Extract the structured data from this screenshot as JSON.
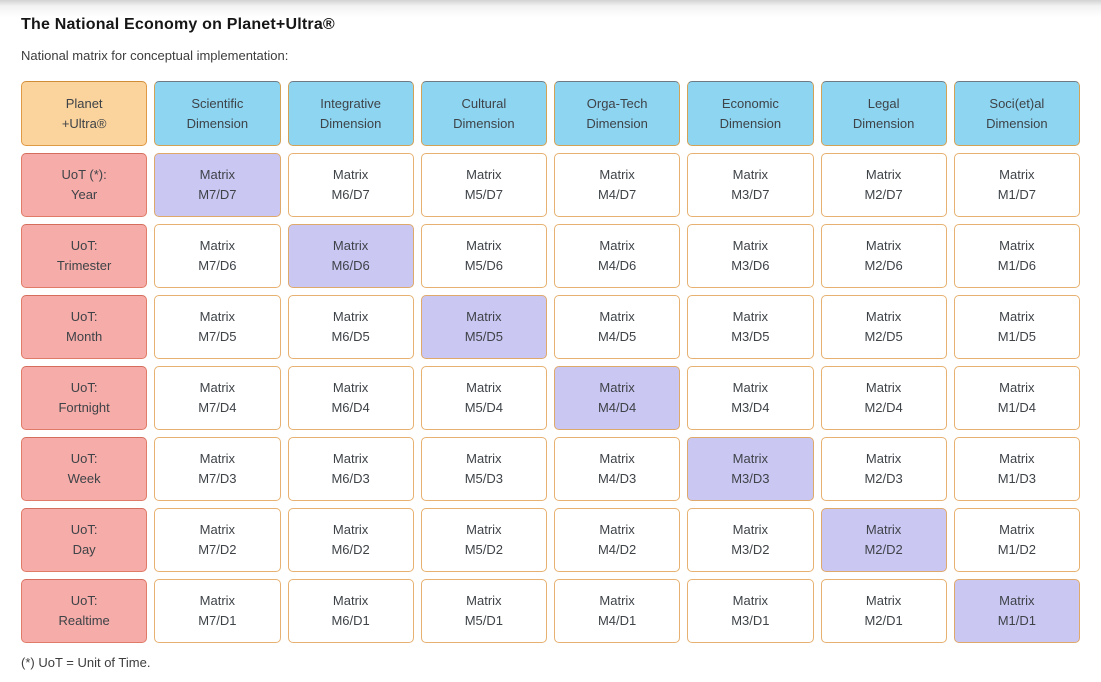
{
  "page": {
    "title": "The National Economy on Planet+Ultra®",
    "subtitle": "National matrix for conceptual implementation:",
    "footnote": "(*) UoT = Unit of Time."
  },
  "colors": {
    "corner_fill": "#fbd39c",
    "corner_border": "#e09a44",
    "dimension_fill": "#8ed5f2",
    "uot_fill": "#f6aca8",
    "uot_border": "#e07b68",
    "matrix_fill": "#ffffff",
    "matrix_border": "#e6b171",
    "diagonal_fill": "#cbc7f3"
  },
  "grid": {
    "corner": {
      "line1": "Planet",
      "line2": "+Ultra®"
    },
    "cell_word": "Matrix",
    "columns": [
      {
        "id": "M7",
        "line1": "Scientific",
        "line2": "Dimension"
      },
      {
        "id": "M6",
        "line1": "Integrative",
        "line2": "Dimension"
      },
      {
        "id": "M5",
        "line1": "Cultural",
        "line2": "Dimension"
      },
      {
        "id": "M4",
        "line1": "Orga-Tech",
        "line2": "Dimension"
      },
      {
        "id": "M3",
        "line1": "Economic",
        "line2": "Dimension"
      },
      {
        "id": "M2",
        "line1": "Legal",
        "line2": "Dimension"
      },
      {
        "id": "M1",
        "line1": "Soci(et)al",
        "line2": "Dimension"
      }
    ],
    "rows": [
      {
        "id": "D7",
        "line1": "UoT (*):",
        "line2": "Year"
      },
      {
        "id": "D6",
        "line1": "UoT:",
        "line2": "Trimester"
      },
      {
        "id": "D5",
        "line1": "UoT:",
        "line2": "Month"
      },
      {
        "id": "D4",
        "line1": "UoT:",
        "line2": "Fortnight"
      },
      {
        "id": "D3",
        "line1": "UoT:",
        "line2": "Week"
      },
      {
        "id": "D2",
        "line1": "UoT:",
        "line2": "Day"
      },
      {
        "id": "D1",
        "line1": "UoT:",
        "line2": "Realtime"
      }
    ],
    "cells": [
      [
        {
          "code": "M7/D7",
          "hl": true
        },
        {
          "code": "M6/D7",
          "hl": false
        },
        {
          "code": "M5/D7",
          "hl": false
        },
        {
          "code": "M4/D7",
          "hl": false
        },
        {
          "code": "M3/D7",
          "hl": false
        },
        {
          "code": "M2/D7",
          "hl": false
        },
        {
          "code": "M1/D7",
          "hl": false
        }
      ],
      [
        {
          "code": "M7/D6",
          "hl": false
        },
        {
          "code": "M6/D6",
          "hl": true
        },
        {
          "code": "M5/D6",
          "hl": false
        },
        {
          "code": "M4/D6",
          "hl": false
        },
        {
          "code": "M3/D6",
          "hl": false
        },
        {
          "code": "M2/D6",
          "hl": false
        },
        {
          "code": "M1/D6",
          "hl": false
        }
      ],
      [
        {
          "code": "M7/D5",
          "hl": false
        },
        {
          "code": "M6/D5",
          "hl": false
        },
        {
          "code": "M5/D5",
          "hl": true
        },
        {
          "code": "M4/D5",
          "hl": false
        },
        {
          "code": "M3/D5",
          "hl": false
        },
        {
          "code": "M2/D5",
          "hl": false
        },
        {
          "code": "M1/D5",
          "hl": false
        }
      ],
      [
        {
          "code": "M7/D4",
          "hl": false
        },
        {
          "code": "M6/D4",
          "hl": false
        },
        {
          "code": "M5/D4",
          "hl": false
        },
        {
          "code": "M4/D4",
          "hl": true
        },
        {
          "code": "M3/D4",
          "hl": false
        },
        {
          "code": "M2/D4",
          "hl": false
        },
        {
          "code": "M1/D4",
          "hl": false
        }
      ],
      [
        {
          "code": "M7/D3",
          "hl": false
        },
        {
          "code": "M6/D3",
          "hl": false
        },
        {
          "code": "M5/D3",
          "hl": false
        },
        {
          "code": "M4/D3",
          "hl": false
        },
        {
          "code": "M3/D3",
          "hl": true
        },
        {
          "code": "M2/D3",
          "hl": false
        },
        {
          "code": "M1/D3",
          "hl": false
        }
      ],
      [
        {
          "code": "M7/D2",
          "hl": false
        },
        {
          "code": "M6/D2",
          "hl": false
        },
        {
          "code": "M5/D2",
          "hl": false
        },
        {
          "code": "M4/D2",
          "hl": false
        },
        {
          "code": "M3/D2",
          "hl": false
        },
        {
          "code": "M2/D2",
          "hl": true
        },
        {
          "code": "M1/D2",
          "hl": false
        }
      ],
      [
        {
          "code": "M7/D1",
          "hl": false
        },
        {
          "code": "M6/D1",
          "hl": false
        },
        {
          "code": "M5/D1",
          "hl": false
        },
        {
          "code": "M4/D1",
          "hl": false
        },
        {
          "code": "M3/D1",
          "hl": false
        },
        {
          "code": "M2/D1",
          "hl": false
        },
        {
          "code": "M1/D1",
          "hl": true
        }
      ]
    ]
  }
}
